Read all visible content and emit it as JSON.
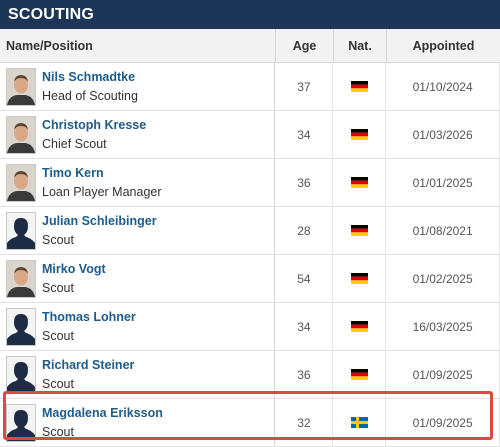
{
  "section_title": "SCOUTING",
  "columns": {
    "name_position": "Name/Position",
    "age": "Age",
    "nat": "Nat.",
    "appointed": "Appointed"
  },
  "staff": [
    {
      "name": "Nils Schmadtke",
      "position": "Head of Scouting",
      "age": "37",
      "nationality": "germany-flag",
      "appointed": "01/10/2024",
      "photo": "portrait"
    },
    {
      "name": "Christoph Kresse",
      "position": "Chief Scout",
      "age": "34",
      "nationality": "germany-flag",
      "appointed": "01/03/2026",
      "photo": "portrait"
    },
    {
      "name": "Timo Kern",
      "position": "Loan Player Manager",
      "age": "36",
      "nationality": "germany-flag",
      "appointed": "01/01/2025",
      "photo": "portrait"
    },
    {
      "name": "Julian Schleibinger",
      "position": "Scout",
      "age": "28",
      "nationality": "germany-flag",
      "appointed": "01/08/2021",
      "photo": "placeholder"
    },
    {
      "name": "Mirko Vogt",
      "position": "Scout",
      "age": "54",
      "nationality": "germany-flag",
      "appointed": "01/02/2025",
      "photo": "portrait"
    },
    {
      "name": "Thomas Lohner",
      "position": "Scout",
      "age": "34",
      "nationality": "germany-flag",
      "appointed": "16/03/2025",
      "photo": "placeholder"
    },
    {
      "name": "Richard Steiner",
      "position": "Scout",
      "age": "36",
      "nationality": "germany-flag",
      "appointed": "01/09/2025",
      "photo": "placeholder"
    },
    {
      "name": "Magdalena Eriksson",
      "position": "Scout",
      "age": "32",
      "nationality": "sweden-flag",
      "appointed": "01/09/2025",
      "photo": "placeholder"
    }
  ],
  "colors": {
    "header_bg": "#1d3557",
    "link": "#1d5c8c",
    "highlight": "#d94a44"
  }
}
